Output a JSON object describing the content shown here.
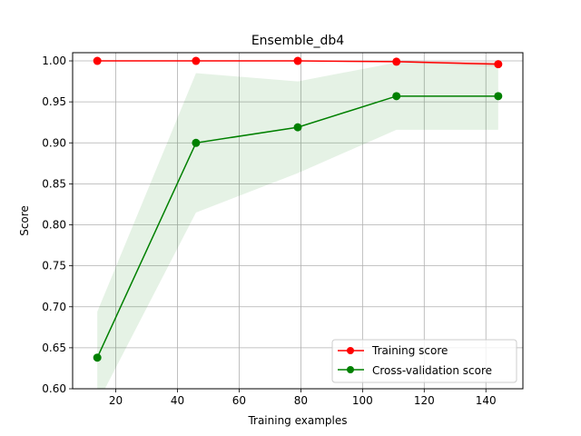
{
  "chart_data": {
    "type": "line",
    "title": "Ensemble_db4",
    "xlabel": "Training examples",
    "ylabel": "Score",
    "xlim": [
      6,
      152
    ],
    "ylim": [
      0.6,
      1.01
    ],
    "grid": true,
    "legend_position": "lower-right",
    "x_ticks": [
      20,
      40,
      60,
      80,
      100,
      120,
      140
    ],
    "x_tick_labels": [
      "20",
      "40",
      "60",
      "80",
      "100",
      "120",
      "140"
    ],
    "y_ticks": [
      0.6,
      0.65,
      0.7,
      0.75,
      0.8,
      0.85,
      0.9,
      0.95,
      1.0
    ],
    "y_tick_labels": [
      "0.60",
      "0.65",
      "0.70",
      "0.75",
      "0.80",
      "0.85",
      "0.90",
      "0.95",
      "1.00"
    ],
    "x": [
      14,
      46,
      79,
      111,
      144
    ],
    "series": [
      {
        "name": "Training score",
        "color": "#ff0000",
        "values": [
          1.0,
          1.0,
          1.0,
          0.999,
          0.996
        ],
        "band_upper": [
          1.0,
          1.0,
          1.0,
          1.0,
          0.999
        ],
        "band_lower": [
          1.0,
          1.0,
          1.0,
          0.998,
          0.993
        ]
      },
      {
        "name": "Cross-validation score",
        "color": "#008000",
        "values": [
          0.638,
          0.9,
          0.919,
          0.957,
          0.957
        ],
        "band_upper": [
          0.694,
          0.985,
          0.975,
          0.998,
          0.998
        ],
        "band_lower": [
          0.582,
          0.815,
          0.863,
          0.916,
          0.916
        ]
      }
    ]
  }
}
